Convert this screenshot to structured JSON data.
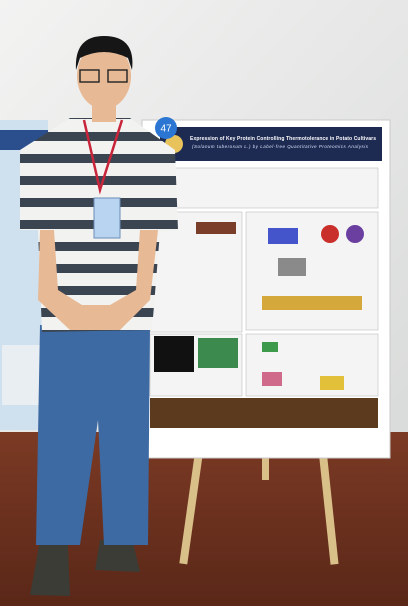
{
  "poster": {
    "number": "47",
    "title": "Expression of Key Protein Controlling Thermotolerance in Potato Cultivars",
    "subtitle": "(Solanum tuberosum L.) by Label-free Quantitative Proteomics Analysis"
  }
}
